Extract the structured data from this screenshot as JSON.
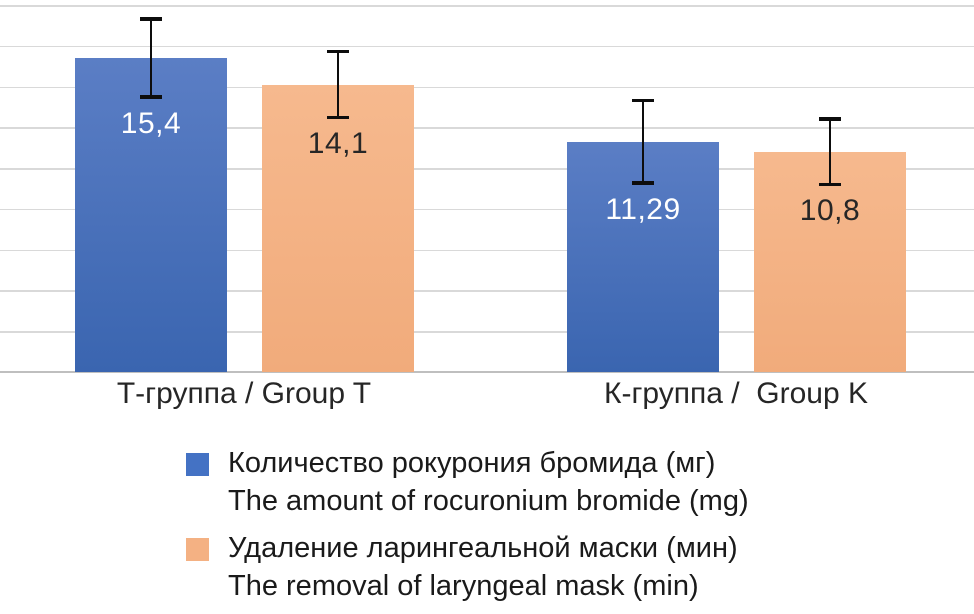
{
  "chart_data": {
    "type": "bar",
    "title": "",
    "categories": [
      "Т-группа / Group T",
      "К-группа /  Group K"
    ],
    "series": [
      {
        "name_ru": "Количество рокурония бромида (мг)",
        "name_en": "The amount of rocuronium bromide (mg)",
        "values": [
          15.4,
          11.29
        ],
        "display_values": [
          "15,4",
          "11,29"
        ],
        "error_bars": [
          2.0,
          2.1
        ],
        "bar_color_top": "#5b7ec5",
        "bar_color_bottom": "#3a65b0",
        "legend_color": "#4472c4",
        "value_label_color": "#ffffff"
      },
      {
        "name_ru": "Удаление ларингеальной маски (мин)",
        "name_en": "The removal of laryngeal mask (min)",
        "values": [
          14.1,
          10.8
        ],
        "display_values": [
          "14,1",
          "10,8"
        ],
        "error_bars": [
          1.7,
          1.7
        ],
        "bar_color_top": "#f6b98e",
        "bar_color_bottom": "#f1ab7b",
        "legend_color": "#f4b183",
        "value_label_color": "#262626"
      }
    ],
    "ylim": [
      0,
      18
    ],
    "y_step": 2,
    "grid": true,
    "y_axis_tick_labels_visible": false,
    "legend_position": "bottom-left",
    "has_error_bars": true
  },
  "colors": {
    "background": "#ffffff",
    "gridline": "#d9d9d9",
    "axis_line": "#bfbfbf",
    "error_bar": "#0d0d0d",
    "category_label_text": "#262626",
    "legend_text": "#1a1a1a"
  }
}
